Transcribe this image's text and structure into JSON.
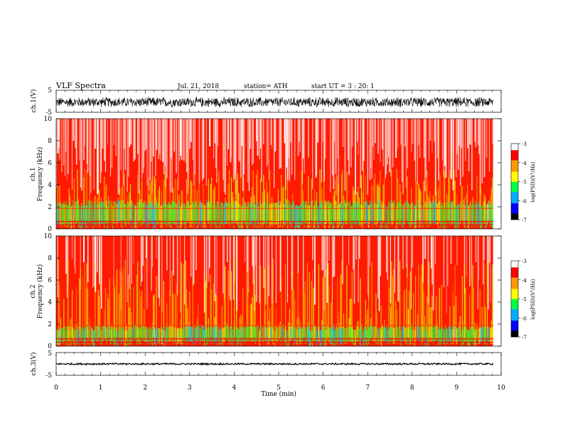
{
  "header": {
    "title": "VLF Spectra",
    "date": "Jul. 21, 2018",
    "station": "station= ATH",
    "start": "start UT =   3 : 20: 1"
  },
  "colors": {
    "ink": "#000000",
    "spectrogram_scale": [
      "#000000",
      "#0000ff",
      "#00aaff",
      "#00ff40",
      "#ffff00",
      "#ff9900",
      "#ff0000",
      "#ffffff"
    ]
  },
  "chart_data": [
    {
      "type": "line",
      "ylabel": "ch.1(V)",
      "ylim": [
        -5,
        5
      ],
      "y_ticks": [
        "5",
        "-5"
      ],
      "xlim": [
        0,
        10
      ],
      "description_series": {
        "amplitude_range_V": [
          -2.5,
          2.5
        ]
      }
    },
    {
      "type": "heatmap",
      "ylabel_line1": "ch.1",
      "ylabel_line2": "Frequency  (kHz)",
      "ylim": [
        0,
        10
      ],
      "y_ticks": [
        "0",
        "2",
        "4",
        "6",
        "8",
        "10"
      ],
      "xlim": [
        0,
        10
      ],
      "colorbar": {
        "label": "log(PSD)(V²/Hz)",
        "range": [
          -7,
          -3
        ],
        "ticks": [
          "-3",
          "-4",
          "-5",
          "-6",
          "-7"
        ]
      }
    },
    {
      "type": "heatmap",
      "ylabel_line1": "ch.2",
      "ylabel_line2": "Frequency  (kHz)",
      "ylim": [
        0,
        10
      ],
      "y_ticks": [
        "0",
        "2",
        "4",
        "6",
        "8",
        "10"
      ],
      "xlim": [
        0,
        10
      ],
      "colorbar": {
        "label": "log(PSD)(V²/Hz)",
        "range": [
          -7,
          -3
        ],
        "ticks": [
          "-3",
          "-4",
          "-5",
          "-6",
          "-7"
        ]
      }
    },
    {
      "type": "line",
      "ylabel": "ch.3(V)",
      "ylim": [
        -5,
        5
      ],
      "y_ticks": [
        "5",
        "-5"
      ],
      "xlim": [
        0,
        10
      ],
      "x_ticks": [
        "0",
        "1",
        "2",
        "3",
        "4",
        "5",
        "6",
        "7",
        "8",
        "9",
        "10"
      ],
      "xlabel": "Time  (min)"
    }
  ]
}
